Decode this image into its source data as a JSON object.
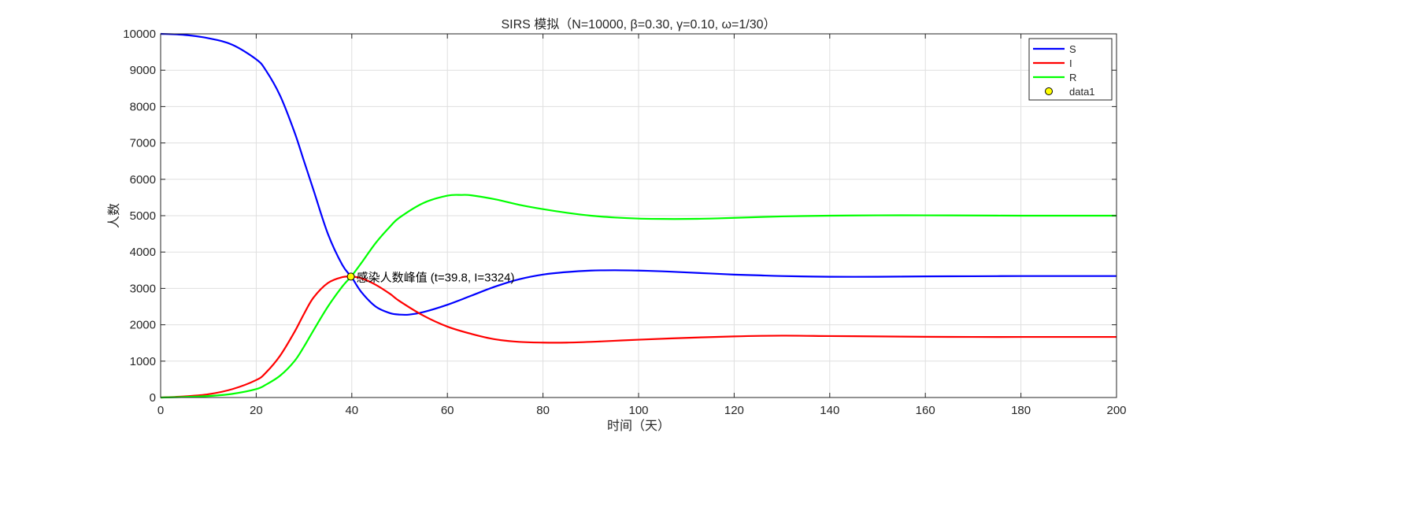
{
  "chart_data": {
    "type": "line",
    "title": "SIRS 模拟（N=10000, β=0.30, γ=0.10, ω=1/30）",
    "xlabel": "时间（天）",
    "ylabel": "人数",
    "xlim": [
      0,
      200
    ],
    "ylim": [
      0,
      10000
    ],
    "xticks": [
      "0",
      "20",
      "40",
      "60",
      "80",
      "100",
      "120",
      "140",
      "160",
      "180",
      "200"
    ],
    "yticks": [
      "0",
      "1000",
      "2000",
      "3000",
      "4000",
      "5000",
      "6000",
      "7000",
      "8000",
      "9000",
      "10000"
    ],
    "grid": true,
    "legend_position": "top-right",
    "series": [
      {
        "name": "S",
        "color": "#0000ff",
        "x": [
          0,
          5,
          10,
          15,
          20,
          22,
          25,
          28,
          30,
          32,
          35,
          38,
          40,
          42,
          45,
          48,
          50,
          52,
          55,
          60,
          65,
          70,
          75,
          80,
          85,
          90,
          95,
          100,
          105,
          110,
          115,
          120,
          125,
          130,
          140,
          150,
          160,
          170,
          180,
          190,
          200
        ],
        "y": [
          10000,
          9970,
          9880,
          9700,
          9300,
          9000,
          8300,
          7300,
          6500,
          5700,
          4500,
          3650,
          3300,
          2900,
          2500,
          2320,
          2280,
          2280,
          2350,
          2550,
          2800,
          3050,
          3250,
          3380,
          3450,
          3490,
          3500,
          3490,
          3470,
          3440,
          3410,
          3380,
          3360,
          3340,
          3320,
          3320,
          3330,
          3335,
          3340,
          3340,
          3340
        ]
      },
      {
        "name": "I",
        "color": "#ff0000",
        "x": [
          0,
          5,
          10,
          15,
          20,
          22,
          25,
          28,
          30,
          32,
          35,
          38,
          40,
          42,
          45,
          48,
          50,
          55,
          60,
          65,
          70,
          75,
          80,
          85,
          90,
          95,
          100,
          110,
          120,
          130,
          140,
          150,
          160,
          170,
          180,
          190,
          200
        ],
        "y": [
          0,
          30,
          90,
          230,
          480,
          680,
          1150,
          1800,
          2300,
          2750,
          3150,
          3310,
          3324,
          3280,
          3100,
          2850,
          2650,
          2250,
          1950,
          1750,
          1600,
          1530,
          1510,
          1510,
          1530,
          1560,
          1590,
          1640,
          1680,
          1700,
          1690,
          1680,
          1670,
          1665,
          1665,
          1665,
          1665
        ]
      },
      {
        "name": "R",
        "color": "#00ff00",
        "x": [
          0,
          5,
          10,
          15,
          20,
          22,
          25,
          28,
          30,
          32,
          35,
          38,
          40,
          42,
          45,
          48,
          50,
          55,
          60,
          63,
          65,
          70,
          75,
          80,
          85,
          90,
          95,
          100,
          105,
          110,
          115,
          120,
          130,
          140,
          150,
          160,
          170,
          180,
          190,
          200
        ],
        "y": [
          0,
          15,
          40,
          100,
          230,
          350,
          600,
          1000,
          1400,
          1850,
          2500,
          3050,
          3350,
          3700,
          4250,
          4700,
          4950,
          5350,
          5550,
          5570,
          5560,
          5450,
          5300,
          5180,
          5080,
          5000,
          4950,
          4920,
          4910,
          4910,
          4920,
          4940,
          4980,
          5000,
          5010,
          5010,
          5005,
          5000,
          5000,
          5000
        ]
      }
    ],
    "marker": {
      "name": "data1",
      "color": "#ffff00",
      "x": 39.8,
      "y": 3324
    },
    "annotation": {
      "text": "感染人数峰值 (t=39.8, I=3324)",
      "x": 39.8,
      "y": 3324
    }
  }
}
